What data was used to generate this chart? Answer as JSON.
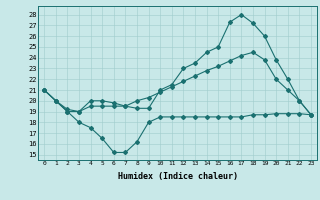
{
  "xlabel": "Humidex (Indice chaleur)",
  "bg_color": "#c8e8e8",
  "line_color": "#1a7070",
  "x_ticks": [
    0,
    1,
    2,
    3,
    4,
    5,
    6,
    7,
    8,
    9,
    10,
    11,
    12,
    13,
    14,
    15,
    16,
    17,
    18,
    19,
    20,
    21,
    22,
    23
  ],
  "y_ticks": [
    15,
    16,
    17,
    18,
    19,
    20,
    21,
    22,
    23,
    24,
    25,
    26,
    27,
    28
  ],
  "ylim": [
    14.5,
    28.8
  ],
  "xlim": [
    -0.5,
    23.5
  ],
  "line1_x": [
    0,
    1,
    2,
    3,
    4,
    5,
    6,
    7,
    8,
    9,
    10,
    11,
    12,
    13,
    14,
    15,
    16,
    17,
    18,
    19,
    20,
    21,
    22,
    23
  ],
  "line1_y": [
    21.0,
    20.0,
    19.0,
    19.0,
    20.0,
    20.0,
    19.8,
    19.5,
    19.3,
    19.3,
    21.0,
    21.5,
    23.0,
    23.5,
    24.5,
    25.0,
    27.3,
    28.0,
    27.2,
    26.0,
    23.8,
    22.0,
    20.0,
    18.7
  ],
  "line2_x": [
    0,
    1,
    2,
    3,
    4,
    5,
    6,
    7,
    8,
    9,
    10,
    11,
    12,
    13,
    14,
    15,
    16,
    17,
    18,
    19,
    20,
    21,
    22,
    23
  ],
  "line2_y": [
    21.0,
    20.0,
    19.0,
    18.0,
    17.5,
    16.5,
    15.2,
    15.2,
    16.2,
    18.0,
    18.5,
    18.5,
    18.5,
    18.5,
    18.5,
    18.5,
    18.5,
    18.5,
    18.7,
    18.7,
    18.8,
    18.8,
    18.8,
    18.7
  ],
  "line3_x": [
    0,
    1,
    2,
    3,
    4,
    5,
    6,
    7,
    8,
    9,
    10,
    11,
    12,
    13,
    14,
    15,
    16,
    17,
    18,
    19,
    20,
    21,
    22,
    23
  ],
  "line3_y": [
    21.0,
    20.0,
    19.2,
    19.0,
    19.5,
    19.5,
    19.5,
    19.5,
    20.0,
    20.3,
    20.8,
    21.3,
    21.8,
    22.3,
    22.8,
    23.2,
    23.7,
    24.2,
    24.5,
    23.8,
    22.0,
    21.0,
    20.0,
    18.7
  ]
}
